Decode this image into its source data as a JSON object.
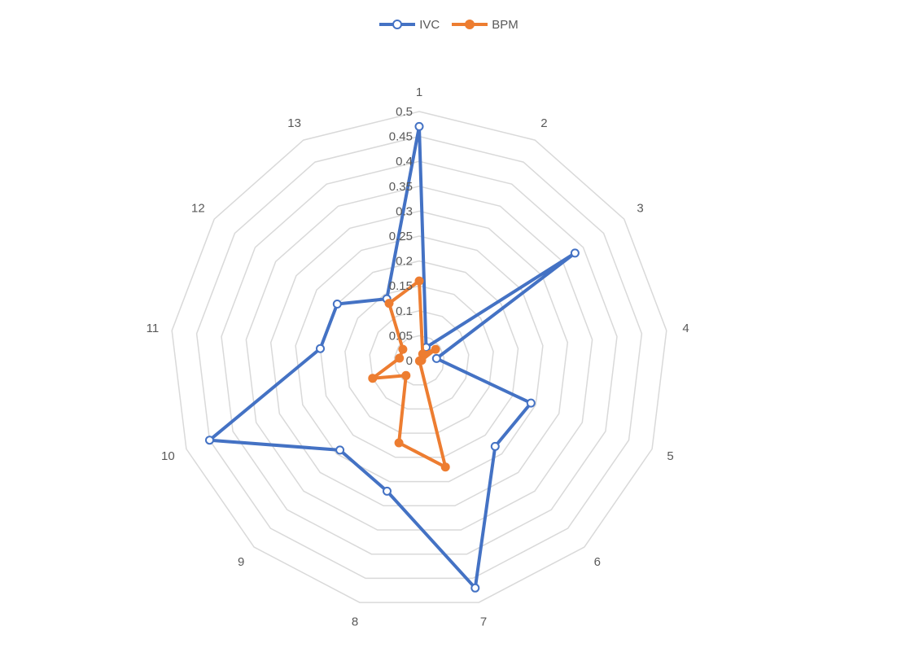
{
  "chart_data": {
    "type": "radar",
    "title": "",
    "categories": [
      "1",
      "2",
      "3",
      "4",
      "5",
      "6",
      "7",
      "8",
      "9",
      "10",
      "11",
      "12",
      "13"
    ],
    "radial_ticks": [
      "0",
      "0.05",
      "0.1",
      "0.15",
      "0.2",
      "0.25",
      "0.3",
      "0.35",
      "0.4",
      "0.45",
      "0.5"
    ],
    "rlim": [
      0,
      0.5
    ],
    "grid": true,
    "legend_position": "top-center",
    "series": [
      {
        "name": "IVC",
        "color": "#4472C4",
        "marker": "hollow-circle",
        "values": [
          0.47,
          0.03,
          0.38,
          0.035,
          0.24,
          0.23,
          0.47,
          0.27,
          0.24,
          0.45,
          0.2,
          0.2,
          0.14
        ]
      },
      {
        "name": "BPM",
        "color": "#ED7D31",
        "marker": "filled-circle",
        "values": [
          0.16,
          0.015,
          0.04,
          0.005,
          0.001,
          0.001,
          0.22,
          0.17,
          0.04,
          0.1,
          0.04,
          0.04,
          0.13
        ]
      }
    ]
  }
}
